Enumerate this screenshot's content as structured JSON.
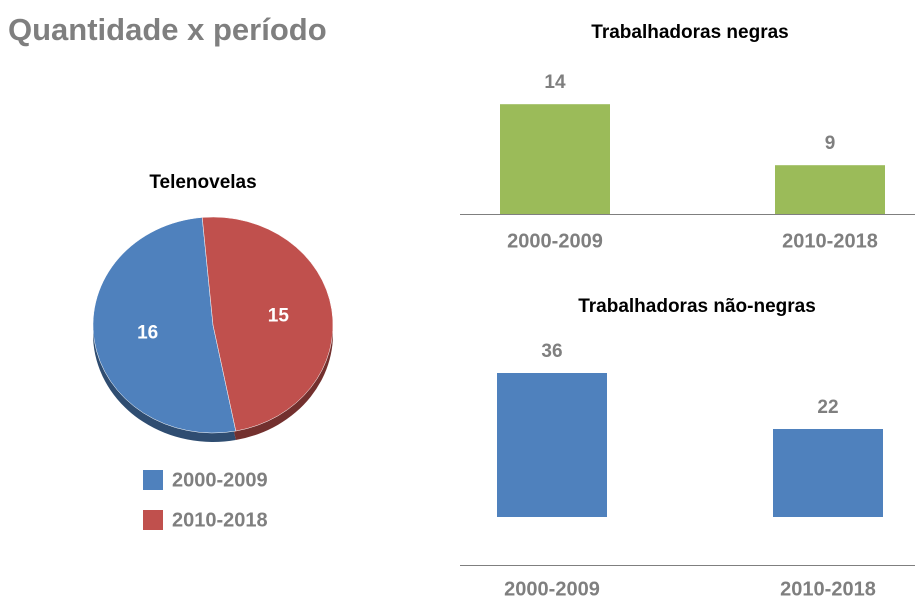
{
  "page_title": "Quantidade x período",
  "chart_data": [
    {
      "type": "pie",
      "title": "Telenovelas",
      "categories": [
        "2000-2009",
        "2010-2018"
      ],
      "values": [
        16,
        15
      ],
      "colors": [
        "#4f81bd",
        "#c0504d"
      ],
      "legend": "bottom"
    },
    {
      "type": "bar",
      "title": "Trabalhadoras negras",
      "categories": [
        "2000-2009",
        "2010-2018"
      ],
      "values": [
        14,
        9
      ],
      "color": "#9bbb59",
      "ylim": [
        5,
        15
      ]
    },
    {
      "type": "bar",
      "title": "Trabalhadoras não-negras",
      "categories": [
        "2000-2009",
        "2010-2018"
      ],
      "values": [
        36,
        22
      ],
      "color": "#4f81bd",
      "ylim": [
        -12,
        40
      ]
    }
  ]
}
